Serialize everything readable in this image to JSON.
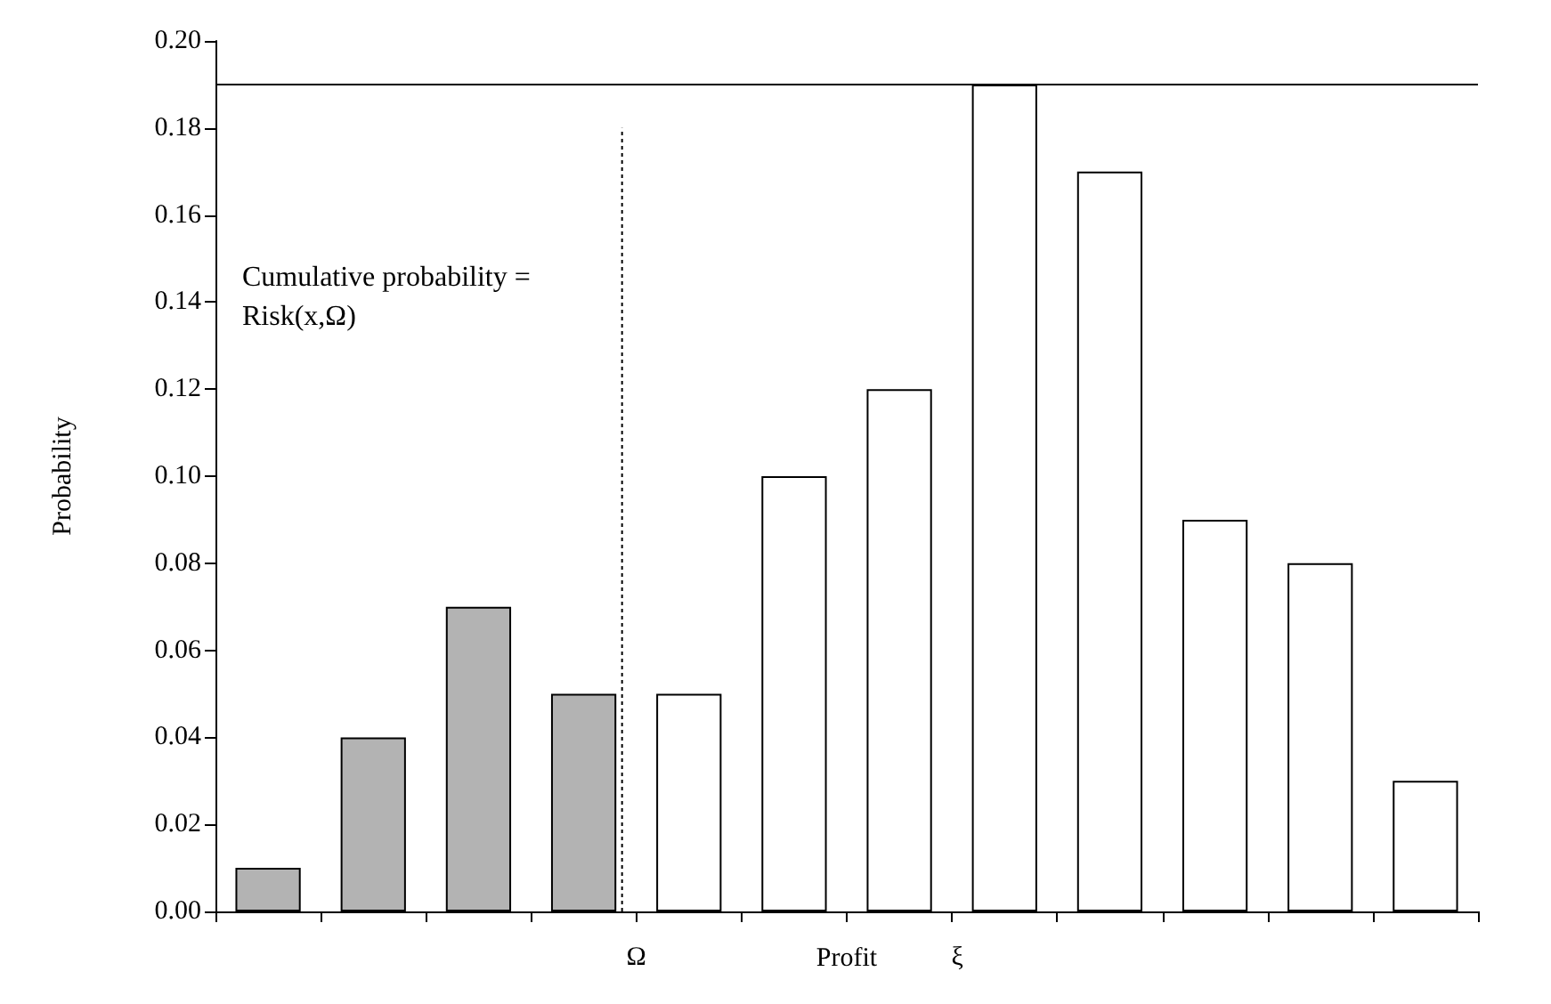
{
  "chart_data": {
    "type": "bar",
    "xlabel": "Profit",
    "ylabel": "Probability",
    "categories": [
      null,
      null,
      null,
      null,
      null,
      null,
      null,
      null,
      null,
      null,
      null,
      null
    ],
    "values": [
      0.01,
      0.04,
      0.07,
      0.05,
      0.05,
      0.1,
      0.12,
      0.19,
      0.17,
      0.09,
      0.08,
      0.03
    ],
    "colors": [
      "#b3b3b3",
      "#b3b3b3",
      "#b3b3b3",
      "#b3b3b3",
      "#ffffff",
      "#ffffff",
      "#ffffff",
      "#ffffff",
      "#ffffff",
      "#ffffff",
      "#ffffff",
      "#ffffff"
    ],
    "ylim": [
      0,
      0.2
    ],
    "yticks": [
      {
        "value": 0,
        "label": "0.00"
      },
      {
        "value": 0.02,
        "label": "0.02"
      },
      {
        "value": 0.04,
        "label": "0.04"
      },
      {
        "value": 0.06,
        "label": "0.06"
      },
      {
        "value": 0.08,
        "label": "0.08"
      },
      {
        "value": 0.1,
        "label": "0.10"
      },
      {
        "value": 0.12,
        "label": "0.12"
      },
      {
        "value": 0.14,
        "label": "0.14"
      },
      {
        "value": 0.16,
        "label": "0.16"
      },
      {
        "value": 0.18,
        "label": "0.18"
      },
      {
        "value": 0.2,
        "label": "0.20"
      }
    ],
    "ref_lines": [
      {
        "axis": "y",
        "value": 0.19,
        "line_style": "solid",
        "color": "#000000"
      }
    ],
    "annotations": [
      "Cumulative probability = Risk(x,Ω)",
      "Ω",
      "ξ"
    ],
    "grid": false
  }
}
